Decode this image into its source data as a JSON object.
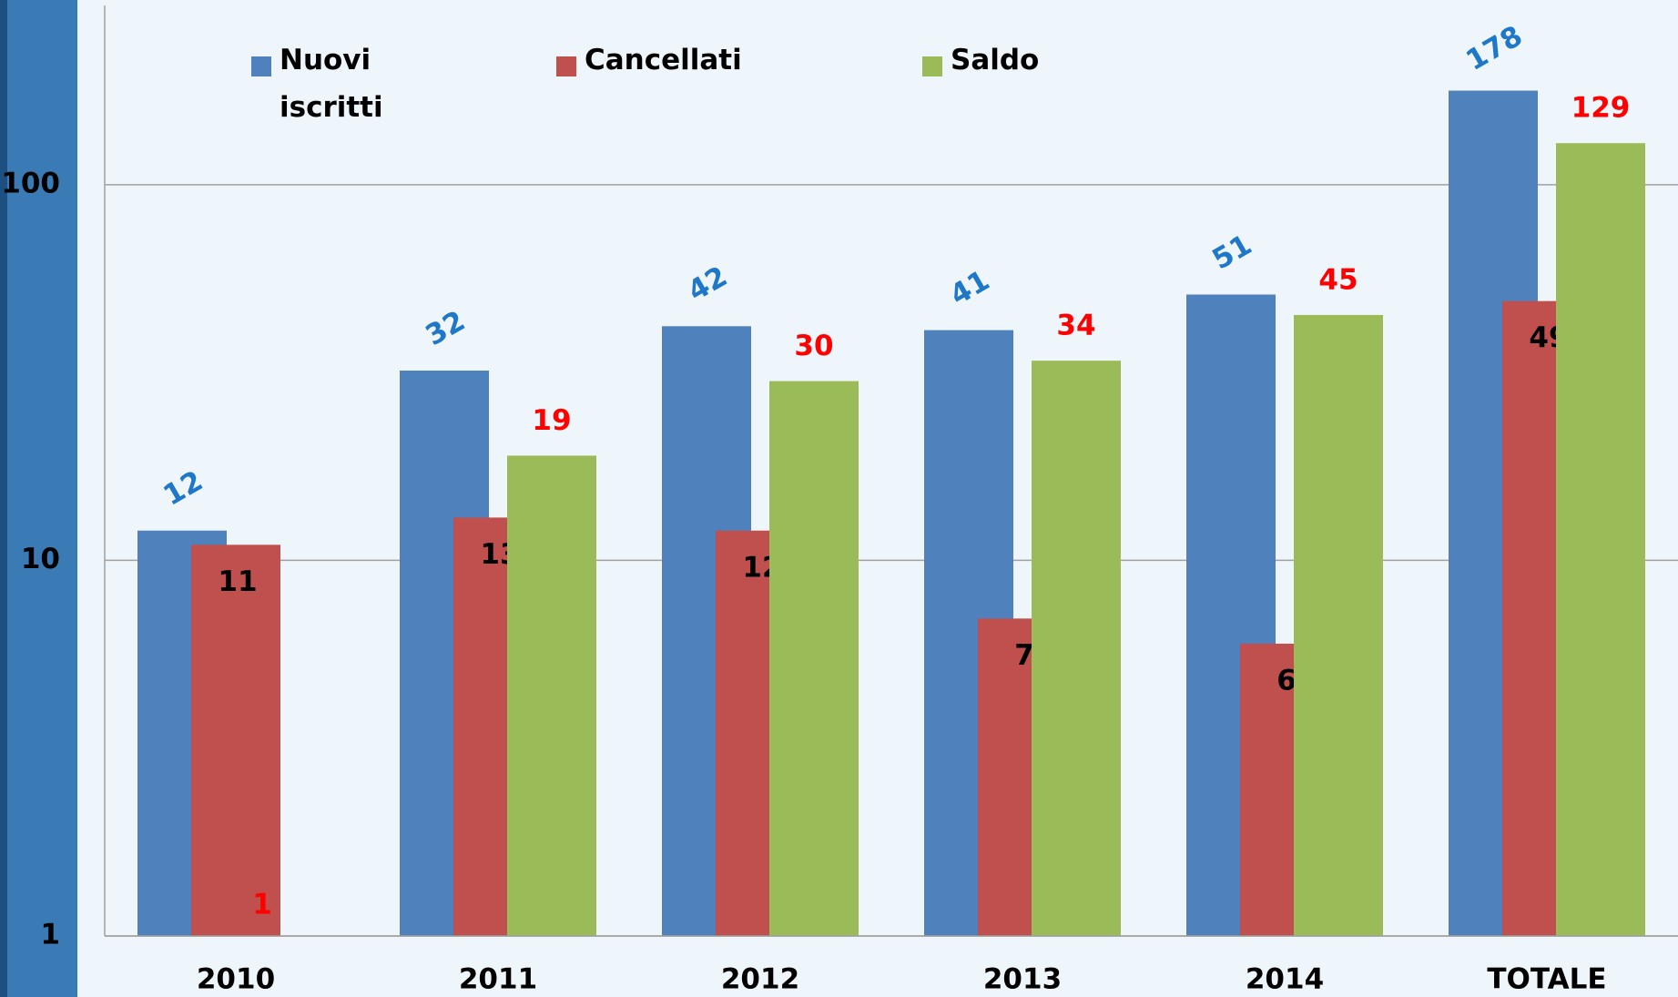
{
  "chart_data": {
    "type": "bar",
    "yscale": "log",
    "grid": true,
    "legend": "top",
    "categories": [
      "2010",
      "2011",
      "2012",
      "2013",
      "2014",
      "TOTALE"
    ],
    "series": [
      {
        "name": "Nuovi iscritti",
        "color": "#4f81bd",
        "label_color": "#1f77c8",
        "values": [
          12,
          32,
          42,
          41,
          51,
          178
        ]
      },
      {
        "name": "Cancellati",
        "color": "#c0504d",
        "label_color": "#000000",
        "values": [
          11,
          13,
          12,
          7,
          6,
          49
        ]
      },
      {
        "name": "Saldo",
        "color": "#9bbb59",
        "label_color": "#ff0000",
        "values": [
          1,
          19,
          30,
          34,
          45,
          129
        ]
      }
    ],
    "ylim": [
      1,
      300
    ],
    "yticks": [
      1,
      10,
      100
    ]
  }
}
